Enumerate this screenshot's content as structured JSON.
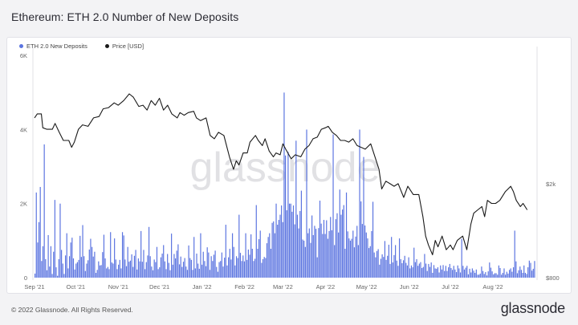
{
  "header": {
    "title": "Ethereum: ETH 2.0 Number of New Deposits"
  },
  "footer": {
    "copyright": "© 2022 Glassnode. All Rights Reserved.",
    "logo": "glassnode"
  },
  "watermark": "glassnode",
  "colors": {
    "deposits": "#5b74e0",
    "price": "#1a1a1a",
    "axis_text": "#666666"
  },
  "chart_data": {
    "type": "bar",
    "title": "Ethereum: ETH 2.0 Number of New Deposits",
    "legend_position": "top-left",
    "grid": false,
    "legend": [
      {
        "name": "ETH 2.0 New Deposits",
        "color": "#5b74e0",
        "icon": "circle"
      },
      {
        "name": "Price [USD]",
        "color": "#1a1a1a",
        "icon": "circle"
      }
    ],
    "x_ticks": [
      "Sep '21",
      "Oct '21",
      "Nov '21",
      "Dec '21",
      "Jan '22",
      "Feb '22",
      "Mar '22",
      "Apr '22",
      "May '22",
      "Jun '22",
      "Jul '22",
      "Aug '22"
    ],
    "y_left": {
      "label": "",
      "ticks": [
        0,
        2000,
        4000,
        6000
      ],
      "tick_labels": [
        "0",
        "2K",
        "4K",
        "6K"
      ],
      "ylim": [
        0,
        6200
      ]
    },
    "y_right": {
      "label": "",
      "scale": "log",
      "ticks": [
        800,
        2000
      ],
      "tick_labels": [
        "$800",
        "$2k"
      ],
      "ylim": [
        800,
        7500
      ]
    },
    "series": [
      {
        "name": "ETH 2.0 New Deposits",
        "kind": "bar",
        "axis": "left",
        "values": [
          110,
          2300,
          950,
          1500,
          2450,
          450,
          850,
          3600,
          500,
          200,
          1150,
          300,
          850,
          100,
          700,
          2100,
          280,
          50,
          500,
          2000,
          750,
          380,
          100,
          600,
          1200,
          250,
          580,
          950,
          1080,
          520,
          220,
          380,
          420,
          480,
          1130,
          560,
          1420,
          580,
          180,
          380,
          470,
          760,
          1050,
          830,
          570,
          700,
          130,
          210,
          440,
          330,
          340,
          690,
          1160,
          520,
          250,
          290,
          230,
          1230,
          410,
          380,
          1060,
          490,
          230,
          350,
          480,
          250,
          1230,
          1140,
          490,
          310,
          830,
          430,
          460,
          630,
          290,
          590,
          750,
          220,
          520,
          440,
          1260,
          430,
          750,
          230,
          420,
          600,
          1370,
          580,
          300,
          200,
          490,
          420,
          830,
          230,
          280,
          550,
          650,
          880,
          440,
          230,
          640,
          400,
          200,
          1190,
          350,
          640,
          520,
          730,
          900,
          360,
          570,
          290,
          430,
          530,
          300,
          210,
          870,
          530,
          480,
          210,
          1100,
          250,
          650,
          380,
          240,
          1200,
          350,
          700,
          450,
          310,
          820,
          680,
          210,
          580,
          450,
          620,
          730,
          290,
          160,
          420,
          450,
          680,
          300,
          540,
          1430,
          330,
          550,
          780,
          490,
          1200,
          830,
          330,
          580,
          530,
          1700,
          670,
          450,
          600,
          440,
          1200,
          480,
          760,
          620,
          1170,
          780,
          450,
          510,
          1960,
          780,
          1040,
          1270,
          400,
          500,
          560,
          530,
          930,
          1100,
          1200,
          780,
          1480,
          1520,
          1200,
          2000,
          1430,
          1560,
          1700,
          1950,
          1500,
          5000,
          3300,
          1820,
          3400,
          2000,
          2000,
          1780,
          1950,
          1440,
          3700,
          1700,
          1330,
          1800,
          2350,
          1030,
          1000,
          830,
          4000,
          1200,
          1330,
          940,
          1680,
          1150,
          1400,
          1320,
          550,
          1340,
          2080,
          1460,
          1180,
          1560,
          1180,
          1550,
          1050,
          1260,
          1640,
          1280,
          3870,
          880,
          1580,
          1740,
          1220,
          2380,
          1700,
          1840,
          1960,
          780,
          2300,
          1250,
          1060,
          1000,
          1050,
          1270,
          820,
          1110,
          1400,
          880,
          4000,
          2060,
          1450,
          3260,
          1410,
          1220,
          1060,
          800,
          850,
          1260,
          2050,
          680,
          550,
          720,
          770,
          350,
          510,
          630,
          560,
          990,
          480,
          590,
          890,
          370,
          1100,
          410,
          610,
          880,
          460,
          320,
          1060,
          500,
          390,
          470,
          590,
          400,
          330,
          550,
          250,
          330,
          280,
          810,
          420,
          500,
          320,
          380,
          420,
          260,
          290,
          640,
          380,
          180,
          370,
          290,
          410,
          130,
          340,
          250,
          240,
          280,
          140,
          330,
          220,
          340,
          180,
          320,
          180,
          280,
          370,
          260,
          210,
          320,
          220,
          150,
          330,
          250,
          140,
          1050,
          320,
          220,
          270,
          320,
          90,
          240,
          140,
          250,
          190,
          130,
          220,
          80,
          80,
          110,
          300,
          180,
          100,
          150,
          60,
          170,
          410,
          270,
          170,
          90,
          120,
          120,
          80,
          330,
          260,
          80,
          130,
          250,
          80,
          160,
          110,
          210,
          250,
          160,
          280,
          1270,
          440,
          120,
          200,
          300,
          210,
          130,
          330,
          130,
          100,
          280,
          460,
          400,
          190,
          240,
          450
        ]
      },
      {
        "name": "Price [USD]",
        "kind": "line",
        "axis": "right",
        "points": [
          [
            "Sep 1 '21",
            3800
          ],
          [
            "Sep 3 '21",
            3950
          ],
          [
            "Sep 6 '21",
            3950
          ],
          [
            "Sep 7 '21",
            3450
          ],
          [
            "Sep 10 '21",
            3400
          ],
          [
            "Sep 14 '21",
            3400
          ],
          [
            "Sep 16 '21",
            3600
          ],
          [
            "Sep 19 '21",
            3300
          ],
          [
            "Sep 22 '21",
            3050
          ],
          [
            "Sep 26 '21",
            3050
          ],
          [
            "Sep 28 '21",
            2850
          ],
          [
            "Sep 30 '21",
            3000
          ],
          [
            "Oct 3 '21",
            3400
          ],
          [
            "Oct 6 '21",
            3550
          ],
          [
            "Oct 10 '21",
            3500
          ],
          [
            "Oct 14 '21",
            3800
          ],
          [
            "Oct 18 '21",
            3850
          ],
          [
            "Oct 21 '21",
            4150
          ],
          [
            "Oct 25 '21",
            4200
          ],
          [
            "Oct 29 '21",
            4400
          ],
          [
            "Nov 1 '21",
            4300
          ],
          [
            "Nov 5 '21",
            4500
          ],
          [
            "Nov 9 '21",
            4800
          ],
          [
            "Nov 12 '21",
            4650
          ],
          [
            "Nov 16 '21",
            4250
          ],
          [
            "Nov 19 '21",
            4300
          ],
          [
            "Nov 22 '21",
            4100
          ],
          [
            "Nov 25 '21",
            4500
          ],
          [
            "Nov 28 '21",
            4300
          ],
          [
            "Dec 1 '21",
            4600
          ],
          [
            "Dec 4 '21",
            4100
          ],
          [
            "Dec 7 '21",
            4300
          ],
          [
            "Dec 10 '21",
            3950
          ],
          [
            "Dec 14 '21",
            3800
          ],
          [
            "Dec 16 '21",
            4000
          ],
          [
            "Dec 19 '21",
            3900
          ],
          [
            "Dec 22 '21",
            4000
          ],
          [
            "Dec 26 '21",
            4050
          ],
          [
            "Dec 28 '21",
            3800
          ],
          [
            "Dec 31 '21",
            3700
          ],
          [
            "Jan 4 '22",
            3800
          ],
          [
            "Jan 7 '22",
            3200
          ],
          [
            "Jan 10 '22",
            3100
          ],
          [
            "Jan 13 '22",
            3300
          ],
          [
            "Jan 17 '22",
            3200
          ],
          [
            "Jan 21 '22",
            2600
          ],
          [
            "Jan 24 '22",
            2300
          ],
          [
            "Jan 26 '22",
            2500
          ],
          [
            "Jan 28 '22",
            2400
          ],
          [
            "Jan 31 '22",
            2700
          ],
          [
            "Feb 3 '22",
            2700
          ],
          [
            "Feb 5 '22",
            3000
          ],
          [
            "Feb 9 '22",
            3200
          ],
          [
            "Feb 11 '22",
            3050
          ],
          [
            "Feb 14 '22",
            2900
          ],
          [
            "Feb 16 '22",
            3100
          ],
          [
            "Feb 19 '22",
            2750
          ],
          [
            "Feb 22 '22",
            2600
          ],
          [
            "Feb 24 '22",
            2700
          ],
          [
            "Feb 27 '22",
            2650
          ],
          [
            "Mar 1 '22",
            2950
          ],
          [
            "Mar 3 '22",
            2800
          ],
          [
            "Mar 7 '22",
            2550
          ],
          [
            "Mar 10 '22",
            2650
          ],
          [
            "Mar 14 '22",
            2600
          ],
          [
            "Mar 17 '22",
            2800
          ],
          [
            "Mar 20 '22",
            2900
          ],
          [
            "Mar 23 '22",
            3100
          ],
          [
            "Mar 26 '22",
            3150
          ],
          [
            "Mar 29 '22",
            3400
          ],
          [
            "Apr 1 '22",
            3450
          ],
          [
            "Apr 3 '22",
            3500
          ],
          [
            "Apr 6 '22",
            3300
          ],
          [
            "Apr 9 '22",
            3200
          ],
          [
            "Apr 12 '22",
            3050
          ],
          [
            "Apr 15 '22",
            3050
          ],
          [
            "Apr 18 '22",
            3000
          ],
          [
            "Apr 21 '22",
            3100
          ],
          [
            "Apr 24 '22",
            2900
          ],
          [
            "Apr 27 '22",
            2850
          ],
          [
            "Apr 30 '22",
            2800
          ],
          [
            "May 4 '22",
            2950
          ],
          [
            "May 8 '22",
            2500
          ],
          [
            "May 10 '22",
            2300
          ],
          [
            "May 12 '22",
            1900
          ],
          [
            "May 15 '22",
            2050
          ],
          [
            "May 18 '22",
            2000
          ],
          [
            "May 21 '22",
            1950
          ],
          [
            "May 24 '22",
            2000
          ],
          [
            "May 28 '22",
            1750
          ],
          [
            "May 31 '22",
            1950
          ],
          [
            "Jun 4 '22",
            1800
          ],
          [
            "Jun 8 '22",
            1800
          ],
          [
            "Jun 11 '22",
            1450
          ],
          [
            "Jun 13 '22",
            1200
          ],
          [
            "Jun 15 '22",
            1100
          ],
          [
            "Jun 18 '22",
            1000
          ],
          [
            "Jun 20 '22",
            1150
          ],
          [
            "Jun 22 '22",
            1080
          ],
          [
            "Jun 25 '22",
            1200
          ],
          [
            "Jun 28 '22",
            1050
          ],
          [
            "Jul 1 '22",
            1100
          ],
          [
            "Jul 3 '22",
            1050
          ],
          [
            "Jul 6 '22",
            1150
          ],
          [
            "Jul 10 '22",
            1200
          ],
          [
            "Jul 13 '22",
            1050
          ],
          [
            "Jul 16 '22",
            1350
          ],
          [
            "Jul 18 '22",
            1500
          ],
          [
            "Jul 21 '22",
            1550
          ],
          [
            "Jul 24 '22",
            1600
          ],
          [
            "Jul 26 '22",
            1450
          ],
          [
            "Jul 28 '22",
            1700
          ],
          [
            "Jul 31 '22",
            1650
          ],
          [
            "Aug 3 '22",
            1650
          ],
          [
            "Aug 6 '22",
            1700
          ],
          [
            "Aug 10 '22",
            1850
          ],
          [
            "Aug 14 '22",
            1950
          ],
          [
            "Aug 16 '22",
            1850
          ],
          [
            "Aug 18 '22",
            1700
          ],
          [
            "Aug 21 '22",
            1600
          ],
          [
            "Aug 23 '22",
            1650
          ],
          [
            "Aug 26 '22",
            1550
          ]
        ]
      }
    ]
  }
}
